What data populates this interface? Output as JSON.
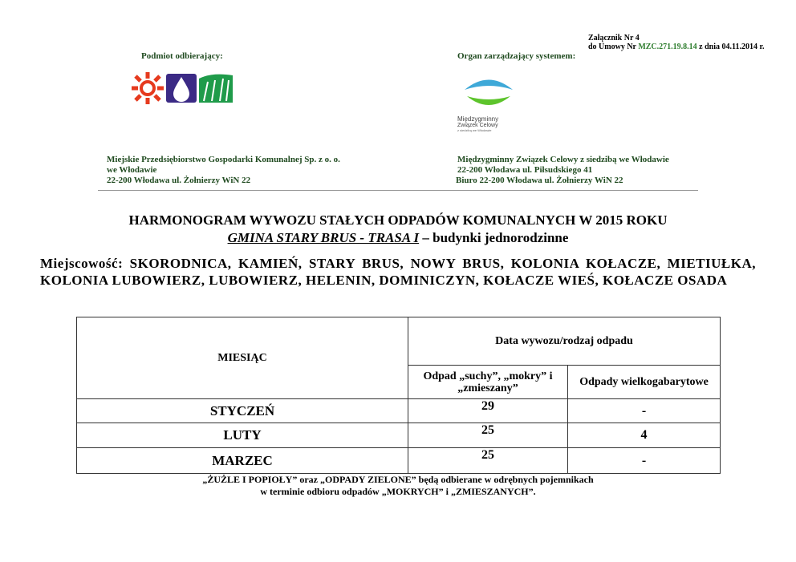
{
  "annex": {
    "line1": "Załącznik Nr 4",
    "line2_prefix": "do Umowy Nr ",
    "contract_no": "MZC.271.19.8.14",
    "line2_suffix": " z dnia 04.11.2014 r."
  },
  "left_party": {
    "label": "Podmiot odbierający:",
    "logo": "MPGK sun-drop-grass logo",
    "lines": [
      "Miejskie Przedsiębiorstwo Gospodarki Komunalnej Sp.  z o. o.",
      "we Włodawie",
      "22-200 Włodawa ul. Żołnierzy WiN 22"
    ]
  },
  "right_party": {
    "label": "Organ zarządzający systemem:",
    "logo_text": [
      "Międzygminny",
      "Związek Celowy",
      "z siedzibą we Włodawie"
    ],
    "lines": [
      "Międzygminny Związek Celowy z siedzibą we Włodawie",
      "22-200 Włodawa ul. Piłsudskiego 41",
      "Biuro  22-200 Włodawa ul. Żołnierzy WiN 22"
    ]
  },
  "title": {
    "line1": "HARMONOGRAM WYWOZU STAŁYCH ODPADÓW KOMUNALNYCH W 2015 ROKU",
    "line2_u": "GMINA STARY BRUS - TRASA I",
    "line2_rest": " – budynki jednorodzinne"
  },
  "locality": "Miejscowość: SKORODNICA, KAMIEŃ, STARY BRUS, NOWY BRUS, KOLONIA KOŁACZE, MIETIUŁKA, KOLONIA LUBOWIERZ, LUBOWIERZ, HELENIN, DOMINICZYN, KOŁACZE WIEŚ, KOŁACZE OSADA",
  "table": {
    "month_header": "MIESIĄC",
    "group_header": "Data wywozu/rodzaj odpadu",
    "col1": "Odpad „suchy”, „mokry” i „zmieszany”",
    "col2": "Odpady wielkogabarytowe",
    "rows": [
      {
        "month": "STYCZEŃ",
        "mixed": "29",
        "bulky": "-"
      },
      {
        "month": "LUTY",
        "mixed": "25",
        "bulky": "4"
      },
      {
        "month": "MARZEC",
        "mixed": "25",
        "bulky": "-"
      }
    ]
  },
  "note": {
    "line1": "„ŻUŻLE I POPIOŁY” oraz „ODPADY ZIELONE” będą odbierane w odrębnych pojemnikach",
    "line2": "w terminie odbioru odpadów „MOKRYCH” i „ZMIESZANYCH”."
  },
  "colors": {
    "green_text": "#1f4a1f",
    "contract_green": "#2e7d2e"
  }
}
